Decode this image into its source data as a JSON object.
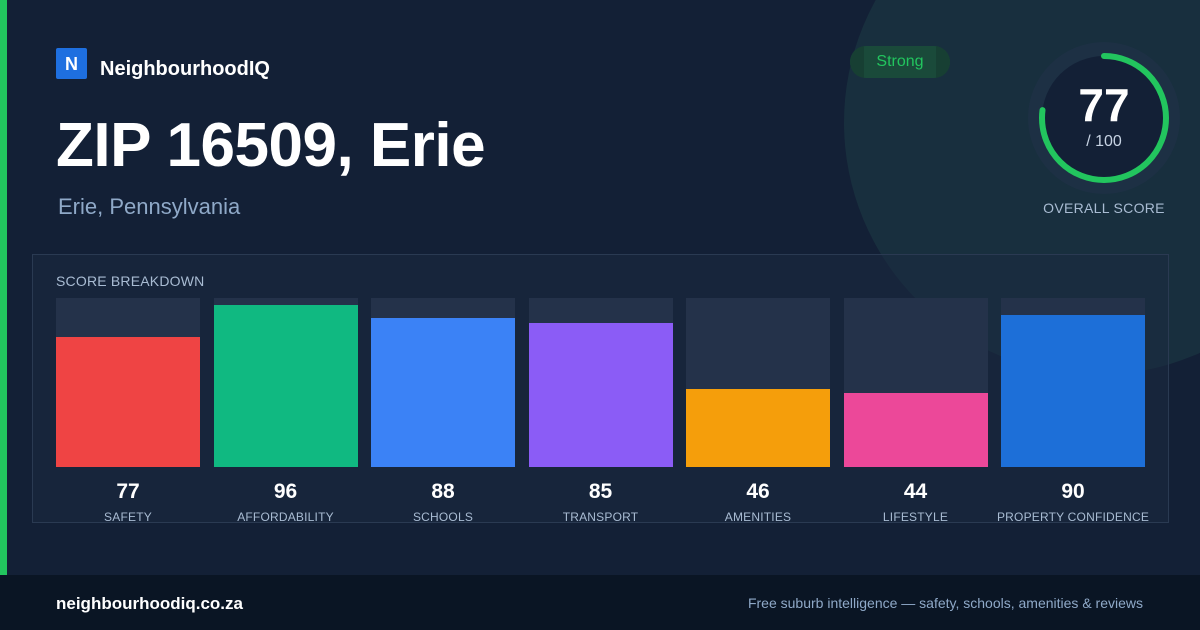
{
  "brand": {
    "logo_letter": "N",
    "name": "NeighbourhoodIQ",
    "logo_color": "#1e6fe0"
  },
  "location": {
    "title": "ZIP 16509, Erie",
    "subtitle": "Erie, Pennsylvania"
  },
  "badge": {
    "label": "Strong",
    "color": "#22c55e"
  },
  "overall": {
    "score": "77",
    "max": "/ 100",
    "score_fraction": 0.77,
    "label": "OVERALL SCORE",
    "ring_color": "#22c55e"
  },
  "breakdown": {
    "title": "SCORE BREAKDOWN",
    "categories": [
      {
        "label": "SAFETY",
        "value": "77",
        "score": 77,
        "color": "#ef4444"
      },
      {
        "label": "AFFORDABILITY",
        "value": "96",
        "score": 96,
        "color": "#10b981"
      },
      {
        "label": "SCHOOLS",
        "value": "88",
        "score": 88,
        "color": "#3b82f6"
      },
      {
        "label": "TRANSPORT",
        "value": "85",
        "score": 85,
        "color": "#8b5cf6"
      },
      {
        "label": "AMENITIES",
        "value": "46",
        "score": 46,
        "color": "#f59e0b"
      },
      {
        "label": "LIFESTYLE",
        "value": "44",
        "score": 44,
        "color": "#ec4899"
      },
      {
        "label": "PROPERTY CONFIDENCE",
        "value": "90",
        "score": 90,
        "color": "#1d6fd8"
      }
    ]
  },
  "footer": {
    "domain": "neighbourhoodiq.co.za",
    "tagline": "Free suburb intelligence — safety, schools, amenities & reviews"
  }
}
